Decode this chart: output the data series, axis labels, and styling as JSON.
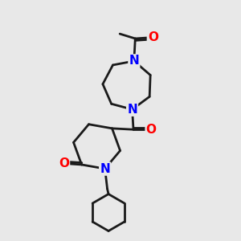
{
  "bg_color": "#e8e8e8",
  "bond_color": "#1a1a1a",
  "N_color": "#0000ff",
  "O_color": "#ff0000",
  "line_width": 2.0,
  "font_size_atom": 11,
  "fig_size": [
    3.0,
    3.0
  ],
  "xlim": [
    0,
    10
  ],
  "ylim": [
    0,
    10
  ]
}
